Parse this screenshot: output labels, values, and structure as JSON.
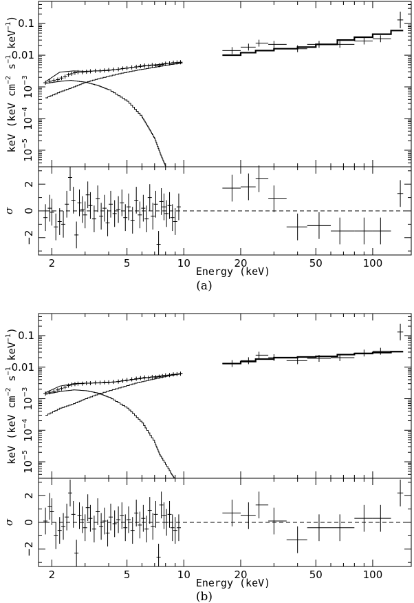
{
  "labels": {
    "ylabel_prefix": "keV (keV cm",
    "ylabel_exp1": "−2",
    "ylabel_mid": " s",
    "ylabel_exp2": "−1",
    "ylabel_mid2": " keV",
    "ylabel_exp3": "−1",
    "ylabel_suffix": ")",
    "resid_label": "σ",
    "xlabel": "Energy (keV)",
    "x_ticks": [
      "2",
      "5",
      "10",
      "20",
      "50",
      "100"
    ],
    "y_ticks_top": [
      {
        "v": 0.1,
        "text": "0.1"
      },
      {
        "v": 0.01,
        "text": "0.01"
      },
      {
        "v": 0.001,
        "base": "10",
        "exp": "−3"
      },
      {
        "v": 0.0001,
        "base": "10",
        "exp": "−4"
      },
      {
        "v": 1e-05,
        "base": "10",
        "exp": "−5"
      }
    ],
    "y_ticks_resid": [
      "2",
      "0",
      "−2"
    ]
  },
  "chart_data": [
    {
      "type": "scatter",
      "panel_label": "(a)",
      "x_scale": "log",
      "xlim": [
        1.7,
        160
      ],
      "spectrum": {
        "y_scale": "log",
        "ylim": [
          3e-06,
          0.5
        ]
      },
      "residual": {
        "ylim": [
          -3.3,
          3.3
        ]
      },
      "data_low": [
        [
          1.85,
          0.00135
        ],
        [
          1.95,
          0.0015
        ],
        [
          2.05,
          0.0016
        ],
        [
          2.15,
          0.0017
        ],
        [
          2.25,
          0.0019
        ],
        [
          2.35,
          0.0021
        ],
        [
          2.45,
          0.0024
        ],
        [
          2.55,
          0.0026
        ],
        [
          2.65,
          0.0028
        ],
        [
          2.75,
          0.0029
        ],
        [
          2.9,
          0.0029
        ],
        [
          3.05,
          0.003
        ],
        [
          3.2,
          0.0031
        ],
        [
          3.4,
          0.0032
        ],
        [
          3.6,
          0.0032
        ],
        [
          3.8,
          0.0033
        ],
        [
          4.0,
          0.0034
        ],
        [
          4.25,
          0.0035
        ],
        [
          4.5,
          0.0036
        ],
        [
          4.75,
          0.0038
        ],
        [
          5.0,
          0.0039
        ],
        [
          5.3,
          0.0041
        ],
        [
          5.6,
          0.0043
        ],
        [
          5.9,
          0.0045
        ],
        [
          6.2,
          0.0047
        ],
        [
          6.5,
          0.0046
        ],
        [
          6.8,
          0.0049
        ],
        [
          7.1,
          0.0047
        ],
        [
          7.4,
          0.0048
        ],
        [
          7.7,
          0.0051
        ],
        [
          8.0,
          0.0054
        ],
        [
          8.4,
          0.0055
        ],
        [
          8.8,
          0.0058
        ],
        [
          9.2,
          0.0059
        ],
        [
          9.6,
          0.006
        ]
      ],
      "data_high": [
        [
          18,
          0.014,
          16,
          20
        ],
        [
          22,
          0.018,
          20,
          24
        ],
        [
          25,
          0.024,
          24,
          28
        ],
        [
          30,
          0.022,
          28,
          35
        ],
        [
          40,
          0.016,
          35,
          45
        ],
        [
          52,
          0.022,
          45,
          60
        ],
        [
          67,
          0.022,
          60,
          80
        ],
        [
          90,
          0.028,
          80,
          100
        ],
        [
          110,
          0.033,
          100,
          125
        ],
        [
          140,
          0.13,
          135,
          145
        ]
      ],
      "model_total_low": [
        [
          1.85,
          0.00145
        ],
        [
          2.2,
          0.0029
        ],
        [
          2.6,
          0.0032
        ],
        [
          3.0,
          0.0031
        ],
        [
          4.0,
          0.0033
        ],
        [
          5.0,
          0.0039
        ],
        [
          6.5,
          0.0047
        ],
        [
          8.0,
          0.0054
        ],
        [
          9.8,
          0.006
        ]
      ],
      "model_steep_low": [
        [
          1.85,
          0.0013
        ],
        [
          2.2,
          0.0015
        ],
        [
          2.5,
          0.0016
        ],
        [
          3.0,
          0.0014
        ],
        [
          3.5,
          0.0011
        ],
        [
          4.0,
          0.0008
        ],
        [
          5.0,
          0.00035
        ],
        [
          6.0,
          0.00011
        ],
        [
          6.5,
          5e-05
        ],
        [
          7.0,
          2.3e-05
        ],
        [
          7.5,
          7.5e-06
        ],
        [
          8.0,
          3e-06
        ]
      ],
      "model_flat_low": [
        [
          1.85,
          0.00045
        ],
        [
          2.2,
          0.0007
        ],
        [
          2.6,
          0.001
        ],
        [
          3.0,
          0.0014
        ],
        [
          3.6,
          0.0019
        ],
        [
          4.5,
          0.0026
        ],
        [
          5.5,
          0.0033
        ],
        [
          6.5,
          0.0039
        ],
        [
          7.5,
          0.0045
        ],
        [
          8.5,
          0.0051
        ],
        [
          9.8,
          0.0057
        ]
      ],
      "model_high": [
        [
          16,
          0.01
        ],
        [
          20,
          0.012
        ],
        [
          24,
          0.014
        ],
        [
          30,
          0.016
        ],
        [
          40,
          0.018
        ],
        [
          50,
          0.022
        ],
        [
          65,
          0.03
        ],
        [
          80,
          0.037
        ],
        [
          100,
          0.046
        ],
        [
          125,
          0.06
        ],
        [
          145,
          0.06
        ]
      ],
      "residuals_low": [
        [
          1.85,
          -0.5
        ],
        [
          1.95,
          0.2
        ],
        [
          2.0,
          -0.1
        ],
        [
          2.1,
          -1.2
        ],
        [
          2.2,
          -0.8
        ],
        [
          2.3,
          -1.0
        ],
        [
          2.4,
          0.5
        ],
        [
          2.5,
          2.5
        ],
        [
          2.6,
          0.8
        ],
        [
          2.7,
          -1.8
        ],
        [
          2.8,
          0.6
        ],
        [
          2.9,
          0.1
        ],
        [
          3.0,
          -0.3
        ],
        [
          3.1,
          1.2
        ],
        [
          3.2,
          0.4
        ],
        [
          3.35,
          -0.6
        ],
        [
          3.5,
          0.9
        ],
        [
          3.65,
          -0.4
        ],
        [
          3.8,
          0.2
        ],
        [
          3.95,
          -0.9
        ],
        [
          4.1,
          0.5
        ],
        [
          4.3,
          -0.2
        ],
        [
          4.5,
          0.1
        ],
        [
          4.7,
          0.6
        ],
        [
          4.9,
          -0.5
        ],
        [
          5.1,
          0.3
        ],
        [
          5.35,
          -0.7
        ],
        [
          5.6,
          0.8
        ],
        [
          5.85,
          -0.3
        ],
        [
          6.1,
          0.2
        ],
        [
          6.35,
          -0.6
        ],
        [
          6.6,
          1.0
        ],
        [
          6.85,
          -0.4
        ],
        [
          7.1,
          0.5
        ],
        [
          7.35,
          -2.5
        ],
        [
          7.6,
          0.7
        ],
        [
          7.85,
          0.3
        ],
        [
          8.1,
          -0.2
        ],
        [
          8.4,
          0.4
        ],
        [
          8.7,
          -0.5
        ],
        [
          9.0,
          -0.8
        ],
        [
          9.4,
          0.3
        ]
      ],
      "residuals_high": [
        [
          18,
          1.7,
          16,
          20
        ],
        [
          22,
          1.8,
          20,
          24
        ],
        [
          25,
          2.4,
          24,
          28
        ],
        [
          30,
          0.9,
          28,
          35
        ],
        [
          40,
          -1.2,
          35,
          45
        ],
        [
          52,
          -1.1,
          45,
          60
        ],
        [
          67,
          -1.5,
          60,
          80
        ],
        [
          90,
          -1.5,
          80,
          100
        ],
        [
          110,
          -1.5,
          100,
          125
        ],
        [
          140,
          1.3,
          135,
          145
        ]
      ]
    },
    {
      "type": "scatter",
      "panel_label": "(b)",
      "x_scale": "log",
      "xlim": [
        1.7,
        160
      ],
      "spectrum": {
        "y_scale": "log",
        "ylim": [
          3e-06,
          0.5
        ]
      },
      "residual": {
        "ylim": [
          -3.3,
          3.3
        ]
      },
      "data_low": [
        [
          1.85,
          0.00145
        ],
        [
          1.95,
          0.0016
        ],
        [
          2.05,
          0.0017
        ],
        [
          2.15,
          0.0019
        ],
        [
          2.25,
          0.0021
        ],
        [
          2.35,
          0.0023
        ],
        [
          2.45,
          0.0026
        ],
        [
          2.55,
          0.0028
        ],
        [
          2.65,
          0.0029
        ],
        [
          2.75,
          0.003
        ],
        [
          2.9,
          0.003
        ],
        [
          3.05,
          0.0031
        ],
        [
          3.2,
          0.0031
        ],
        [
          3.4,
          0.0032
        ],
        [
          3.6,
          0.0032
        ],
        [
          3.8,
          0.0033
        ],
        [
          4.0,
          0.0033
        ],
        [
          4.25,
          0.0034
        ],
        [
          4.5,
          0.0035
        ],
        [
          4.75,
          0.0037
        ],
        [
          5.0,
          0.0039
        ],
        [
          5.3,
          0.0041
        ],
        [
          5.6,
          0.0043
        ],
        [
          5.9,
          0.0045
        ],
        [
          6.2,
          0.0047
        ],
        [
          6.5,
          0.0046
        ],
        [
          6.8,
          0.0049
        ],
        [
          7.1,
          0.0048
        ],
        [
          7.4,
          0.005
        ],
        [
          7.7,
          0.0052
        ],
        [
          8.0,
          0.0055
        ],
        [
          8.4,
          0.0056
        ],
        [
          8.8,
          0.0059
        ],
        [
          9.2,
          0.006
        ],
        [
          9.6,
          0.0062
        ]
      ],
      "data_high": [
        [
          18,
          0.013,
          16,
          20
        ],
        [
          22,
          0.016,
          20,
          24
        ],
        [
          25,
          0.024,
          24,
          28
        ],
        [
          30,
          0.02,
          28,
          35
        ],
        [
          40,
          0.016,
          35,
          45
        ],
        [
          52,
          0.019,
          45,
          60
        ],
        [
          67,
          0.02,
          60,
          80
        ],
        [
          90,
          0.028,
          80,
          100
        ],
        [
          110,
          0.032,
          100,
          125
        ],
        [
          140,
          0.13,
          135,
          145
        ]
      ],
      "model_total_low": [
        [
          1.85,
          0.00155
        ],
        [
          2.2,
          0.0025
        ],
        [
          2.6,
          0.003
        ],
        [
          3.0,
          0.0031
        ],
        [
          4.0,
          0.0032
        ],
        [
          5.0,
          0.0038
        ],
        [
          6.5,
          0.0047
        ],
        [
          8.0,
          0.0055
        ],
        [
          9.8,
          0.0062
        ]
      ],
      "model_steep_low": [
        [
          1.85,
          0.0014
        ],
        [
          2.2,
          0.0017
        ],
        [
          2.6,
          0.0019
        ],
        [
          3.0,
          0.0018
        ],
        [
          3.5,
          0.0015
        ],
        [
          4.0,
          0.0011
        ],
        [
          5.0,
          0.0005
        ],
        [
          6.0,
          0.00017
        ],
        [
          7.0,
          4e-05
        ],
        [
          7.5,
          1.5e-05
        ],
        [
          8.5,
          4.5e-06
        ],
        [
          8.9,
          3e-06
        ]
      ],
      "model_flat_low": [
        [
          1.85,
          0.0003
        ],
        [
          2.2,
          0.0005
        ],
        [
          2.6,
          0.0007
        ],
        [
          3.0,
          0.001
        ],
        [
          3.6,
          0.0015
        ],
        [
          4.5,
          0.0022
        ],
        [
          5.5,
          0.0031
        ],
        [
          6.5,
          0.0039
        ],
        [
          7.5,
          0.0047
        ],
        [
          8.5,
          0.0055
        ],
        [
          9.8,
          0.0063
        ]
      ],
      "model_high": [
        [
          16,
          0.013
        ],
        [
          20,
          0.015
        ],
        [
          24,
          0.018
        ],
        [
          30,
          0.02
        ],
        [
          40,
          0.021
        ],
        [
          50,
          0.022
        ],
        [
          65,
          0.025
        ],
        [
          80,
          0.027
        ],
        [
          100,
          0.029
        ],
        [
          125,
          0.031
        ],
        [
          145,
          0.031
        ]
      ],
      "residuals_low": [
        [
          1.85,
          0.1
        ],
        [
          1.95,
          1.2
        ],
        [
          2.0,
          0.8
        ],
        [
          2.1,
          -1.0
        ],
        [
          2.2,
          -0.6
        ],
        [
          2.3,
          -0.3
        ],
        [
          2.4,
          0.4
        ],
        [
          2.5,
          2.2
        ],
        [
          2.6,
          0.6
        ],
        [
          2.7,
          -2.3
        ],
        [
          2.8,
          0.5
        ],
        [
          2.9,
          0.2
        ],
        [
          3.0,
          -0.4
        ],
        [
          3.1,
          1.1
        ],
        [
          3.2,
          0.3
        ],
        [
          3.35,
          -0.5
        ],
        [
          3.5,
          0.8
        ],
        [
          3.65,
          -0.3
        ],
        [
          3.8,
          0.1
        ],
        [
          3.95,
          -0.8
        ],
        [
          4.1,
          0.4
        ],
        [
          4.3,
          -0.1
        ],
        [
          4.5,
          0.2
        ],
        [
          4.7,
          0.5
        ],
        [
          4.9,
          -0.4
        ],
        [
          5.1,
          0.2
        ],
        [
          5.35,
          -0.6
        ],
        [
          5.6,
          0.7
        ],
        [
          5.85,
          -0.2
        ],
        [
          6.1,
          0.3
        ],
        [
          6.35,
          -0.5
        ],
        [
          6.6,
          0.9
        ],
        [
          6.85,
          -0.3
        ],
        [
          7.1,
          0.6
        ],
        [
          7.35,
          -2.6
        ],
        [
          7.6,
          1.3
        ],
        [
          7.85,
          0.5
        ],
        [
          8.1,
          0.0
        ],
        [
          8.4,
          0.6
        ],
        [
          8.7,
          -0.4
        ],
        [
          9.0,
          -0.6
        ],
        [
          9.4,
          -0.4
        ]
      ],
      "residuals_high": [
        [
          18,
          0.7,
          16,
          20
        ],
        [
          22,
          0.5,
          20,
          24
        ],
        [
          25,
          1.3,
          24,
          28
        ],
        [
          30,
          0.1,
          28,
          35
        ],
        [
          40,
          -1.3,
          35,
          45
        ],
        [
          52,
          -0.4,
          45,
          60
        ],
        [
          67,
          -0.4,
          60,
          80
        ],
        [
          90,
          0.3,
          80,
          100
        ],
        [
          110,
          0.3,
          100,
          125
        ],
        [
          140,
          2.2,
          135,
          145
        ]
      ]
    }
  ]
}
